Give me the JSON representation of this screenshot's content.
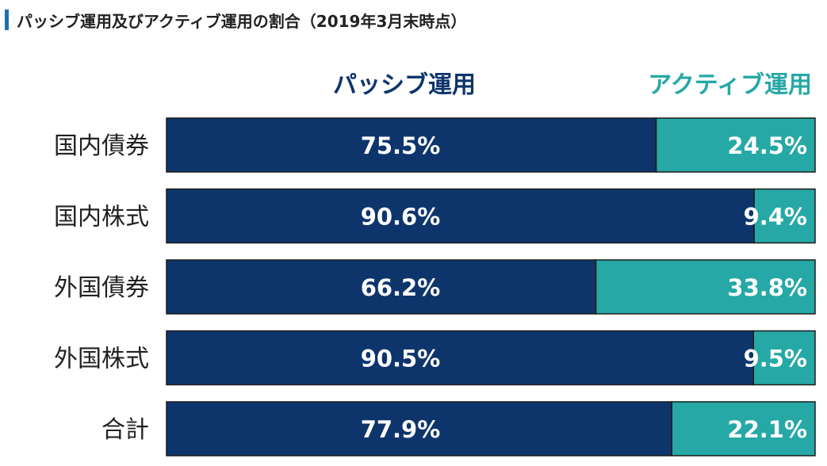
{
  "page": {
    "title": "パッシブ運用及びアクティブ運用の割合（2019年3月末時点）"
  },
  "colors": {
    "passive": "#0e356b",
    "active": "#26a8a6",
    "title_accent": "#1a6fb5",
    "passive_legend_text": "#0e356b",
    "active_legend_text": "#26a8a6",
    "bar_value_text": "#ffffff",
    "category_text": "#222222"
  },
  "chart_data": {
    "type": "bar",
    "orientation": "horizontal",
    "stacked": true,
    "title": "パッシブ運用及びアクティブ運用の割合（2019年3月末時点）",
    "categories": [
      "国内債券",
      "国内株式",
      "外国債券",
      "外国株式",
      "合計"
    ],
    "series": [
      {
        "name": "パッシブ運用",
        "values": [
          75.5,
          90.6,
          66.2,
          90.5,
          77.9
        ],
        "labels": [
          "75.5%",
          "90.6%",
          "66.2%",
          "90.5%",
          "77.9%"
        ]
      },
      {
        "name": "アクティブ運用",
        "values": [
          24.5,
          9.4,
          33.8,
          9.5,
          22.1
        ],
        "labels": [
          "24.5%",
          "9.4%",
          "33.8%",
          "9.5%",
          "22.1%"
        ]
      }
    ],
    "xlim": [
      0,
      100
    ],
    "grid": false,
    "legend": "top"
  }
}
